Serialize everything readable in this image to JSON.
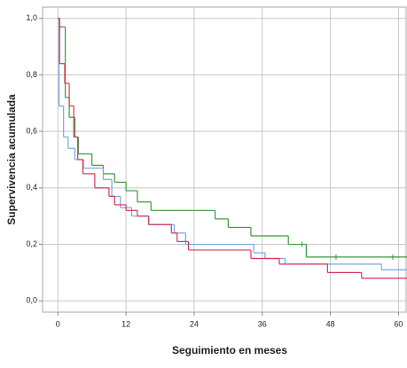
{
  "chart_data": {
    "type": "step",
    "xlabel": "Seguimiento  en meses",
    "ylabel": "Supervivencia acumulada",
    "xlim": [
      -2.7,
      61.5
    ],
    "ylim": [
      -0.04,
      1.04
    ],
    "xticks": [
      0,
      12,
      24,
      36,
      48,
      60
    ],
    "yticks": [
      {
        "value": 0,
        "label": "0,0"
      },
      {
        "value": 0.2,
        "label": "0,2"
      },
      {
        "value": 0.4,
        "label": "0,4"
      },
      {
        "value": 0.6,
        "label": "0,6"
      },
      {
        "value": 0.8,
        "label": "0,8"
      },
      {
        "value": 1,
        "label": "1,0"
      }
    ],
    "grid": true,
    "series": [
      {
        "color": "#3a9a3a",
        "x": [
          0,
          0.3,
          1.3,
          2,
          3,
          3.6,
          6,
          8,
          10,
          12,
          14,
          16.4,
          27.7,
          30,
          34,
          40.6,
          43.75,
          61.5
        ],
        "values": [
          1,
          0.97,
          0.72,
          0.65,
          0.58,
          0.52,
          0.48,
          0.45,
          0.42,
          0.39,
          0.35,
          0.32,
          0.29,
          0.26,
          0.23,
          0.2,
          0.155,
          0.155
        ],
        "censored_x": [
          43,
          49,
          59
        ],
        "censored_y": [
          0.2,
          0.155,
          0.155
        ]
      },
      {
        "color": "#6fa8e8",
        "x": [
          0,
          0.2,
          1,
          1.8,
          3,
          4.5,
          8,
          9.5,
          11,
          13,
          16,
          20.5,
          22.5,
          34.5,
          36.5,
          40,
          57,
          61.5
        ],
        "values": [
          1,
          0.69,
          0.58,
          0.54,
          0.5,
          0.47,
          0.43,
          0.37,
          0.33,
          0.3,
          0.27,
          0.24,
          0.2,
          0.17,
          0.15,
          0.13,
          0.11,
          0.11
        ]
      },
      {
        "color": "#d9335a",
        "x": [
          0,
          0.3,
          1.2,
          2,
          2.8,
          3.5,
          4.4,
          6.5,
          9,
          10,
          12,
          14,
          16,
          20,
          21,
          23,
          34,
          39,
          47.5,
          53.5,
          61.5
        ],
        "values": [
          1,
          0.84,
          0.77,
          0.69,
          0.58,
          0.5,
          0.45,
          0.4,
          0.37,
          0.34,
          0.32,
          0.3,
          0.27,
          0.24,
          0.21,
          0.18,
          0.15,
          0.13,
          0.1,
          0.08,
          0.08
        ]
      }
    ]
  }
}
